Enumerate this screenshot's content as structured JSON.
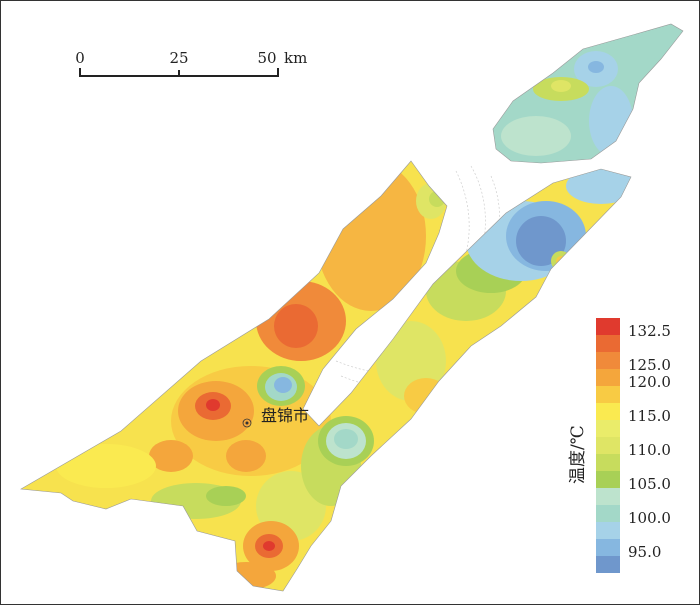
{
  "map": {
    "city_label": "盘锦市"
  },
  "scale_bar": {
    "ticks": [
      "0",
      "25",
      "50"
    ],
    "unit": "km"
  },
  "legend": {
    "title": "温度/℃",
    "classes": [
      {
        "label": "132.5",
        "color": "#e03a2e"
      },
      {
        "label": "",
        "color": "#ea6a33"
      },
      {
        "label": "125.0",
        "color": "#f08a3a"
      },
      {
        "label": "120.0",
        "color": "#f4a63c"
      },
      {
        "label": "",
        "color": "#f8cb44"
      },
      {
        "label": "115.0",
        "color": "#faea50"
      },
      {
        "label": "",
        "color": "#eaec6a"
      },
      {
        "label": "110.0",
        "color": "#dfe565"
      },
      {
        "label": "",
        "color": "#c7dc5d"
      },
      {
        "label": "105.0",
        "color": "#a8d056"
      },
      {
        "label": "",
        "color": "#bde3cd"
      },
      {
        "label": "100.0",
        "color": "#a3d8c8"
      },
      {
        "label": "",
        "color": "#a6d2e8"
      },
      {
        "label": "95.0",
        "color": "#86b7e0"
      },
      {
        "label": "",
        "color": "#6f97cc"
      }
    ]
  }
}
